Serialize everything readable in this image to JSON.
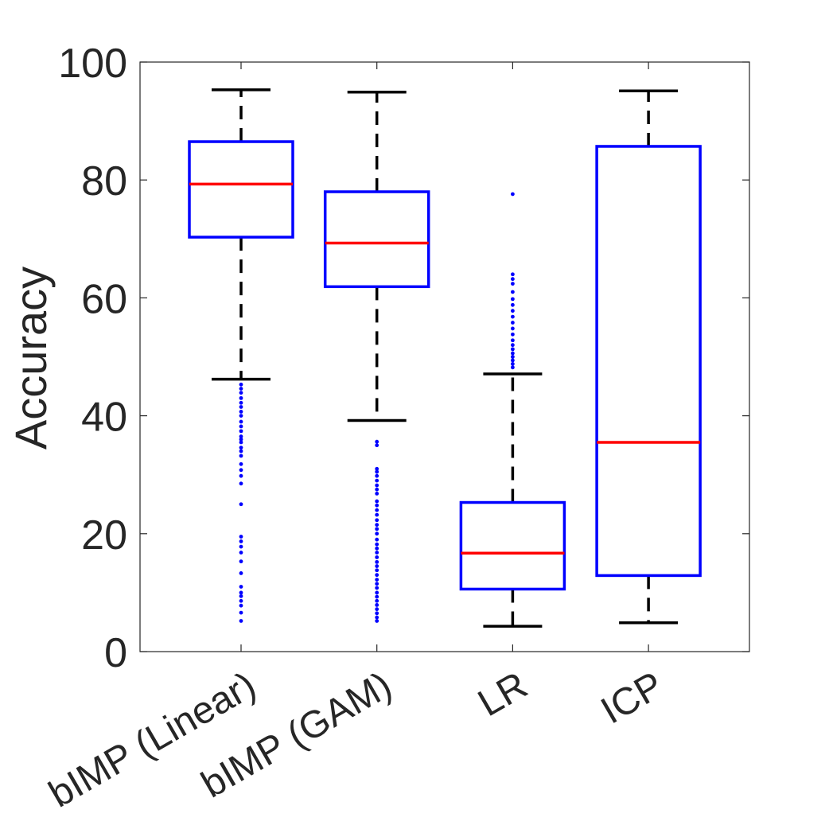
{
  "chart_data": {
    "type": "box",
    "title": "",
    "xlabel": "",
    "ylabel": "Accuracy",
    "ylim": [
      0,
      100
    ],
    "yticks": [
      "0",
      "20",
      "40",
      "60",
      "80",
      "100"
    ],
    "categories": [
      "bIMP (Linear)",
      "bIMP (GAM)",
      "LR",
      "ICP"
    ],
    "boxes": [
      {
        "label": "bIMP (Linear)",
        "whisker_low": 46.2,
        "q1": 70.3,
        "median": 79.3,
        "q3": 86.5,
        "whisker_high": 95.3,
        "outliers": [
          45.3,
          44.6,
          43.9,
          43.0,
          42.2,
          41.5,
          40.7,
          40.0,
          39.0,
          38.2,
          37.4,
          36.5,
          36.0,
          35.5,
          34.6,
          34.0,
          33.2,
          31.8,
          30.8,
          29.8,
          28.5,
          25.0,
          19.5,
          18.7,
          17.8,
          16.8,
          15.3,
          13.3,
          11.0,
          10.0,
          9.4,
          8.6,
          7.8,
          6.6,
          5.2
        ]
      },
      {
        "label": "bIMP (GAM)",
        "whisker_low": 39.2,
        "q1": 61.9,
        "median": 69.3,
        "q3": 78.0,
        "whisker_high": 94.9,
        "outliers": [
          35.6,
          35.0,
          31.0,
          30.5,
          29.8,
          29.0,
          28.2,
          27.5,
          26.8,
          25.5,
          24.8,
          24.0,
          23.2,
          22.3,
          21.5,
          20.8,
          20.0,
          19.0,
          18.2,
          17.5,
          16.8,
          16.0,
          15.2,
          14.5,
          13.8,
          13.0,
          12.2,
          11.5,
          10.8,
          10.0,
          9.3,
          8.6,
          7.9,
          7.2,
          6.5,
          5.8,
          5.2
        ]
      },
      {
        "label": "LR",
        "whisker_low": 4.3,
        "q1": 10.6,
        "median": 16.7,
        "q3": 25.3,
        "whisker_high": 47.1,
        "outliers": [
          77.6,
          64.0,
          63.2,
          62.4,
          61.0,
          59.8,
          58.8,
          57.8,
          56.8,
          55.8,
          54.8,
          53.8,
          52.8,
          52.0,
          51.3,
          50.6,
          50.0,
          49.4,
          48.8,
          48.2
        ]
      },
      {
        "label": "ICP",
        "whisker_low": 4.9,
        "q1": 12.9,
        "median": 35.5,
        "q3": 85.7,
        "whisker_high": 95.1,
        "outliers": []
      }
    ],
    "colors": {
      "box": "#0000ff",
      "median": "#ff0000",
      "whisker": "#000000",
      "outlier": "#0000ff",
      "axis": "#262626"
    },
    "grid": false,
    "legend": "none"
  }
}
